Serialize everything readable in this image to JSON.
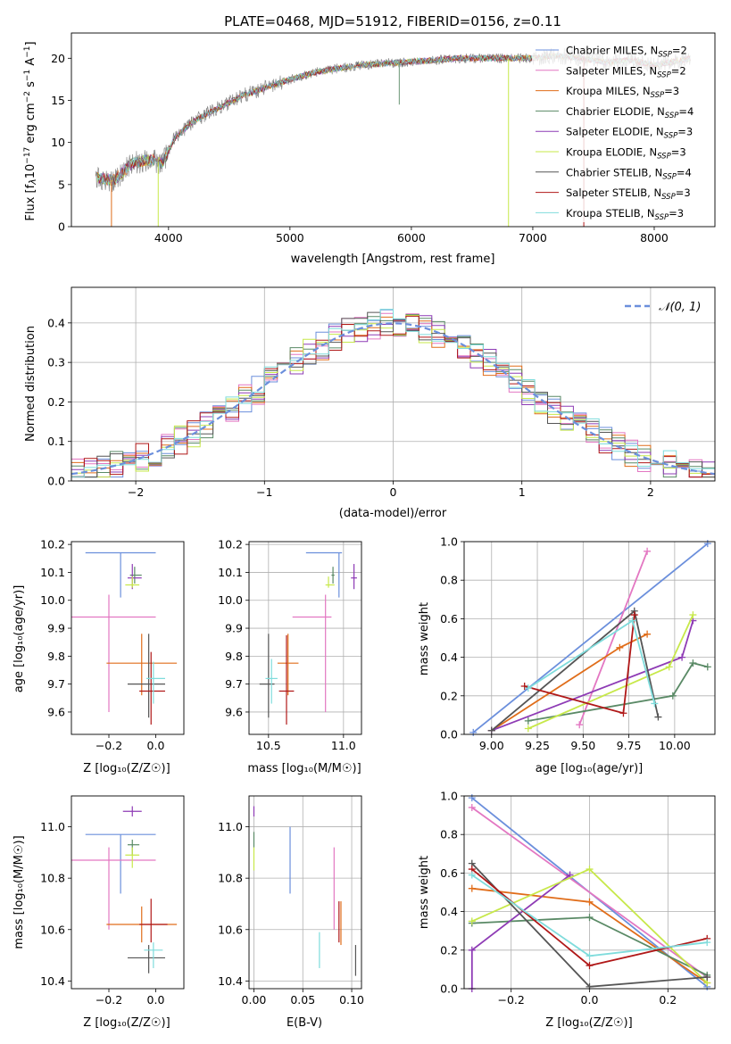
{
  "title": "PLATE=0468, MJD=51912, FIBERID=0156, z=0.11",
  "models": [
    {
      "name": "Chabrier MILES",
      "nssp": "2",
      "color": "#6b8fdc"
    },
    {
      "name": "Salpeter MILES",
      "nssp": "2",
      "color": "#e377c2"
    },
    {
      "name": "Kroupa MILES",
      "nssp": "3",
      "color": "#e06d1a"
    },
    {
      "name": "Chabrier ELODIE",
      "nssp": "4",
      "color": "#5a8a66"
    },
    {
      "name": "Salpeter ELODIE",
      "nssp": "3",
      "color": "#8e3bb5"
    },
    {
      "name": "Kroupa ELODIE",
      "nssp": "3",
      "color": "#c7e84a"
    },
    {
      "name": "Chabrier STELIB",
      "nssp": "4",
      "color": "#555555"
    },
    {
      "name": "Salpeter STELIB",
      "nssp": "3",
      "color": "#b01818"
    },
    {
      "name": "Kroupa STELIB",
      "nssp": "3",
      "color": "#7fdcdc"
    }
  ],
  "chart_data": [
    {
      "type": "line",
      "id": "spectrum",
      "xlabel": "wavelength [Angstrom, rest frame]",
      "ylabel": "Flux [f_λ 10^-17 erg cm^-2 s^-1 A^-1]",
      "xlim": [
        3200,
        8500
      ],
      "ylim": [
        0,
        23
      ],
      "xticks": [
        "4000",
        "5000",
        "6000",
        "7000",
        "8000"
      ],
      "yticks": [
        "0",
        "5",
        "10",
        "15",
        "20"
      ],
      "grid": false,
      "legend": "right",
      "continuum": {
        "x": [
          3400,
          3550,
          3700,
          3850,
          3950,
          4050,
          4200,
          4400,
          4600,
          4800,
          5000,
          5200,
          5400,
          5600,
          5800,
          6000,
          6200,
          6400,
          6600,
          6800,
          7000,
          7200,
          7400,
          7600,
          7800,
          8000,
          8200,
          8300
        ],
        "y": [
          5.8,
          5.5,
          7.5,
          8.0,
          7.5,
          10.5,
          12.5,
          14.0,
          15.5,
          16.5,
          17.5,
          18.3,
          18.8,
          19.2,
          19.4,
          19.6,
          19.8,
          20.0,
          20.0,
          20.0,
          20.0,
          20.3,
          20.0,
          19.5,
          19.8,
          19.2,
          19.7,
          20.0
        ]
      }
    },
    {
      "type": "histogram",
      "id": "residuals",
      "xlabel": "(data-model)/error",
      "ylabel": "Normed distribution",
      "xlim": [
        -2.5,
        2.5
      ],
      "ylim": [
        0,
        0.49
      ],
      "xticks": [
        "−2",
        "−1",
        "0",
        "1",
        "2"
      ],
      "yticks": [
        "0.0",
        "0.1",
        "0.2",
        "0.3",
        "0.4"
      ],
      "grid": true,
      "legend": "top-right",
      "reference": {
        "name": "𝒩(0, 1)",
        "mean": 0,
        "sigma": 1
      }
    },
    {
      "type": "scatter",
      "id": "age-vs-Z",
      "xlabel": "Z [log₁₀(Z/Z☉)]",
      "ylabel": "age  [log₁₀(age/yr)]",
      "xlim": [
        -0.36,
        0.12
      ],
      "ylim": [
        9.52,
        10.21
      ],
      "xticks": [
        "−0.2",
        "0.0"
      ],
      "yticks": [
        "9.6",
        "9.7",
        "9.8",
        "9.9",
        "10.0",
        "10.1",
        "10.2"
      ],
      "grid": false,
      "points": [
        {
          "x": -0.15,
          "y": 10.17,
          "xerr": [
            0.15,
            0.15
          ],
          "yerr": [
            0.16,
            0.0
          ]
        },
        {
          "x": -0.2,
          "y": 9.94,
          "xerr": [
            0.3,
            0.2
          ],
          "yerr": [
            0.34,
            0.08
          ]
        },
        {
          "x": -0.06,
          "y": 9.775,
          "xerr": [
            0.15,
            0.15
          ],
          "yerr": [
            0.115,
            0.105
          ]
        },
        {
          "x": -0.09,
          "y": 10.09,
          "xerr": [
            0.02,
            0.03
          ],
          "yerr": [
            0.03,
            0.03
          ]
        },
        {
          "x": -0.1,
          "y": 10.08,
          "xerr": [
            0.02,
            0.04
          ],
          "yerr": [
            0.04,
            0.05
          ]
        },
        {
          "x": -0.1,
          "y": 10.055,
          "xerr": [
            0.03,
            0.03
          ],
          "yerr": [
            0.01,
            0.03
          ]
        },
        {
          "x": -0.03,
          "y": 9.7,
          "xerr": [
            0.09,
            0.07
          ],
          "yerr": [
            0.12,
            0.18
          ]
        },
        {
          "x": -0.02,
          "y": 9.675,
          "xerr": [
            0.05,
            0.06
          ],
          "yerr": [
            0.12,
            0.14
          ]
        },
        {
          "x": -0.01,
          "y": 9.72,
          "xerr": [
            0.03,
            0.05
          ],
          "yerr": [
            0.09,
            0.06
          ]
        }
      ]
    },
    {
      "type": "scatter",
      "id": "age-vs-mass",
      "xlabel": "mass [log₁₀(M/M☉)]",
      "ylabel": "",
      "xlim": [
        10.37,
        11.12
      ],
      "ylim": [
        9.52,
        10.21
      ],
      "xticks": [
        "10.5",
        "11.0"
      ],
      "yticks": [
        "9.6",
        "9.7",
        "9.8",
        "9.9",
        "10.0",
        "10.1",
        "10.2"
      ],
      "grid": true,
      "points": [
        {
          "x": 10.97,
          "y": 10.17,
          "xerr": [
            0.22,
            0.02
          ],
          "yerr": [
            0.16,
            0.0
          ]
        },
        {
          "x": 10.88,
          "y": 9.94,
          "xerr": [
            0.22,
            0.04
          ],
          "yerr": [
            0.34,
            0.08
          ]
        },
        {
          "x": 10.63,
          "y": 9.775,
          "xerr": [
            0.07,
            0.07
          ],
          "yerr": [
            0.115,
            0.105
          ]
        },
        {
          "x": 10.93,
          "y": 10.09,
          "xerr": [
            0.01,
            0.01
          ],
          "yerr": [
            0.03,
            0.03
          ]
        },
        {
          "x": 11.07,
          "y": 10.08,
          "xerr": [
            0.02,
            0.02
          ],
          "yerr": [
            0.04,
            0.05
          ]
        },
        {
          "x": 10.9,
          "y": 10.055,
          "xerr": [
            0.02,
            0.04
          ],
          "yerr": [
            0.01,
            0.03
          ]
        },
        {
          "x": 10.5,
          "y": 9.7,
          "xerr": [
            0.06,
            0.04
          ],
          "yerr": [
            0.12,
            0.18
          ]
        },
        {
          "x": 10.62,
          "y": 9.675,
          "xerr": [
            0.05,
            0.05
          ],
          "yerr": [
            0.12,
            0.2
          ]
        },
        {
          "x": 10.52,
          "y": 9.72,
          "xerr": [
            0.04,
            0.04
          ],
          "yerr": [
            0.09,
            0.07
          ]
        }
      ]
    },
    {
      "type": "line",
      "id": "weight-vs-age",
      "xlabel": "age  [log₁₀(age/yr)]",
      "ylabel": "mass weight",
      "xlim": [
        8.85,
        10.22
      ],
      "ylim": [
        0,
        1.0
      ],
      "xticks": [
        "9.00",
        "9.25",
        "9.50",
        "9.75",
        "10.00"
      ],
      "yticks": [
        "0.0",
        "0.2",
        "0.4",
        "0.6",
        "0.8",
        "1.0"
      ],
      "grid": true,
      "series": [
        {
          "x": [
            8.9,
            10.18
          ],
          "y": [
            0.01,
            0.99
          ]
        },
        {
          "x": [
            9.48,
            9.85
          ],
          "y": [
            0.05,
            0.95
          ]
        },
        {
          "x": [
            9.0,
            9.7,
            9.85
          ],
          "y": [
            0.02,
            0.45,
            0.52
          ]
        },
        {
          "x": [
            9.2,
            9.99,
            10.1,
            10.18
          ],
          "y": [
            0.07,
            0.2,
            0.37,
            0.35
          ]
        },
        {
          "x": [
            9.0,
            10.04,
            10.1
          ],
          "y": [
            0.02,
            0.4,
            0.59
          ]
        },
        {
          "x": [
            9.2,
            9.97,
            10.1
          ],
          "y": [
            0.03,
            0.35,
            0.62
          ]
        },
        {
          "x": [
            9.0,
            9.78,
            9.91
          ],
          "y": [
            0.02,
            0.64,
            0.09
          ]
        },
        {
          "x": [
            9.18,
            9.72,
            9.78
          ],
          "y": [
            0.25,
            0.11,
            0.62
          ]
        },
        {
          "x": [
            9.2,
            9.77,
            9.89
          ],
          "y": [
            0.24,
            0.59,
            0.16
          ]
        }
      ]
    },
    {
      "type": "scatter",
      "id": "mass-vs-Z",
      "xlabel": "Z [log₁₀(Z/Z☉)]",
      "ylabel": "mass [log₁₀(M/M☉)]",
      "xlim": [
        -0.36,
        0.12
      ],
      "ylim": [
        10.37,
        11.12
      ],
      "xticks": [
        "−0.2",
        "0.0"
      ],
      "yticks": [
        "10.4",
        "10.6",
        "10.8",
        "11.0"
      ],
      "grid": false,
      "points": [
        {
          "x": -0.15,
          "y": 10.97,
          "xerr": [
            0.15,
            0.15
          ],
          "yerr": [
            0.23,
            0.0
          ]
        },
        {
          "x": -0.2,
          "y": 10.87,
          "xerr": [
            0.3,
            0.2
          ],
          "yerr": [
            0.27,
            0.05
          ]
        },
        {
          "x": -0.06,
          "y": 10.62,
          "xerr": [
            0.15,
            0.15
          ],
          "yerr": [
            0.07,
            0.07
          ]
        },
        {
          "x": -0.1,
          "y": 10.93,
          "xerr": [
            0.02,
            0.03
          ],
          "yerr": [
            0.04,
            0.02
          ]
        },
        {
          "x": -0.1,
          "y": 11.06,
          "xerr": [
            0.04,
            0.04
          ],
          "yerr": [
            0.02,
            0.02
          ]
        },
        {
          "x": -0.1,
          "y": 10.89,
          "xerr": [
            0.03,
            0.03
          ],
          "yerr": [
            0.05,
            0.03
          ]
        },
        {
          "x": -0.03,
          "y": 10.49,
          "xerr": [
            0.09,
            0.07
          ],
          "yerr": [
            0.06,
            0.05
          ]
        },
        {
          "x": -0.02,
          "y": 10.62,
          "xerr": [
            0.05,
            0.07
          ],
          "yerr": [
            0.07,
            0.1
          ]
        },
        {
          "x": -0.01,
          "y": 10.52,
          "xerr": [
            0.04,
            0.04
          ],
          "yerr": [
            0.07,
            0.03
          ]
        }
      ]
    },
    {
      "type": "scatter",
      "id": "mass-vs-ebv",
      "xlabel": "E(B-V)",
      "ylabel": "",
      "xlim": [
        -0.005,
        0.11
      ],
      "ylim": [
        10.37,
        11.12
      ],
      "xticks": [
        "0.00",
        "0.05",
        "0.10"
      ],
      "yticks": [
        "10.4",
        "10.6",
        "10.8",
        "11.0"
      ],
      "grid": true,
      "points": [
        {
          "x": 0.037,
          "y": 10.9,
          "yerr": [
            0.16,
            0.1
          ]
        },
        {
          "x": 0.082,
          "y": 10.82,
          "yerr": [
            0.22,
            0.1
          ]
        },
        {
          "x": 0.089,
          "y": 10.64,
          "yerr": [
            0.1,
            0.07
          ]
        },
        {
          "x": 0.0,
          "y": 10.94,
          "yerr": [
            0.02,
            0.04
          ]
        },
        {
          "x": 0.0,
          "y": 11.06,
          "yerr": [
            0.02,
            0.02
          ]
        },
        {
          "x": 0.0,
          "y": 10.88,
          "yerr": [
            0.05,
            0.04
          ]
        },
        {
          "x": 0.104,
          "y": 10.48,
          "yerr": [
            0.06,
            0.06
          ]
        },
        {
          "x": 0.087,
          "y": 10.62,
          "yerr": [
            0.07,
            0.09
          ]
        },
        {
          "x": 0.067,
          "y": 10.52,
          "yerr": [
            0.07,
            0.07
          ]
        }
      ]
    },
    {
      "type": "line",
      "id": "weight-vs-Z",
      "xlabel": "Z [log₁₀(Z/Z☉)]",
      "ylabel": "mass weight",
      "xlim": [
        -0.32,
        0.32
      ],
      "ylim": [
        0,
        1.0
      ],
      "xticks": [
        "−0.2",
        "0.0",
        "0.2"
      ],
      "yticks": [
        "0.0",
        "0.2",
        "0.4",
        "0.6",
        "0.8",
        "1.0"
      ],
      "grid": true,
      "series": [
        {
          "x": [
            -0.3,
            0.3
          ],
          "y": [
            0.99,
            0.01
          ]
        },
        {
          "x": [
            -0.3,
            0.3
          ],
          "y": [
            0.94,
            0.06
          ]
        },
        {
          "x": [
            -0.3,
            0.0,
            0.3
          ],
          "y": [
            0.52,
            0.45,
            0.03
          ]
        },
        {
          "x": [
            -0.3,
            0.0,
            0.3
          ],
          "y": [
            0.34,
            0.37,
            0.07
          ]
        },
        {
          "x": [
            -0.3,
            -0.3,
            -0.05
          ],
          "y": [
            0.0,
            0.2,
            0.59
          ]
        },
        {
          "x": [
            -0.3,
            0.0,
            0.3
          ],
          "y": [
            0.35,
            0.62,
            0.03
          ]
        },
        {
          "x": [
            -0.3,
            0.0,
            0.3
          ],
          "y": [
            0.65,
            0.01,
            0.06
          ]
        },
        {
          "x": [
            -0.3,
            0.0,
            0.3
          ],
          "y": [
            0.62,
            0.12,
            0.26
          ]
        },
        {
          "x": [
            -0.3,
            0.0,
            0.3
          ],
          "y": [
            0.59,
            0.17,
            0.24
          ]
        }
      ]
    }
  ]
}
